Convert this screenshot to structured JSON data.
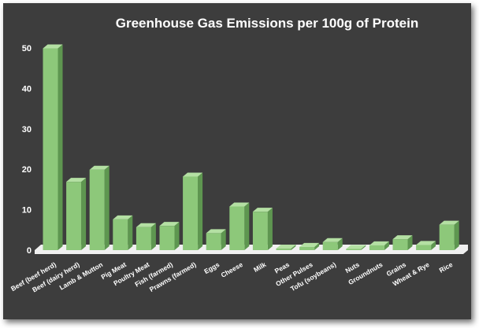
{
  "colors": {
    "background": "#3d3d3d",
    "bar_front": "#8dc87a",
    "bar_side": "#5e9650",
    "bar_top": "#b4e0a3",
    "floor": "#f0f0f0",
    "text": "#ffffff"
  },
  "chart_data": {
    "type": "bar",
    "title": "Greenhouse Gas Emissions per 100g of Protein",
    "xlabel": "",
    "ylabel": "",
    "ylim": [
      0,
      50
    ],
    "yticks": [
      0,
      10,
      20,
      30,
      40,
      50
    ],
    "grid": false,
    "legend": "none",
    "style": "3d-columns",
    "categories": [
      "Beef (beef herd)",
      "Beef (dairy herd)",
      "Lamb & Mutton",
      "Pig Meat",
      "Poultry Meat",
      "Fish (farmed)",
      "Prawns (farmed)",
      "Eggs",
      "Cheese",
      "Milk",
      "Peas",
      "Other Pulses",
      "Tofu (soybeans)",
      "Nuts",
      "Groundnuts",
      "Grains",
      "Wheat & Rye",
      "Rice"
    ],
    "values": [
      49.9,
      16.9,
      19.9,
      7.6,
      5.7,
      6.0,
      18.2,
      4.2,
      10.8,
      9.5,
      0.4,
      0.8,
      2.0,
      0.3,
      1.2,
      2.7,
      1.3,
      6.3
    ]
  }
}
